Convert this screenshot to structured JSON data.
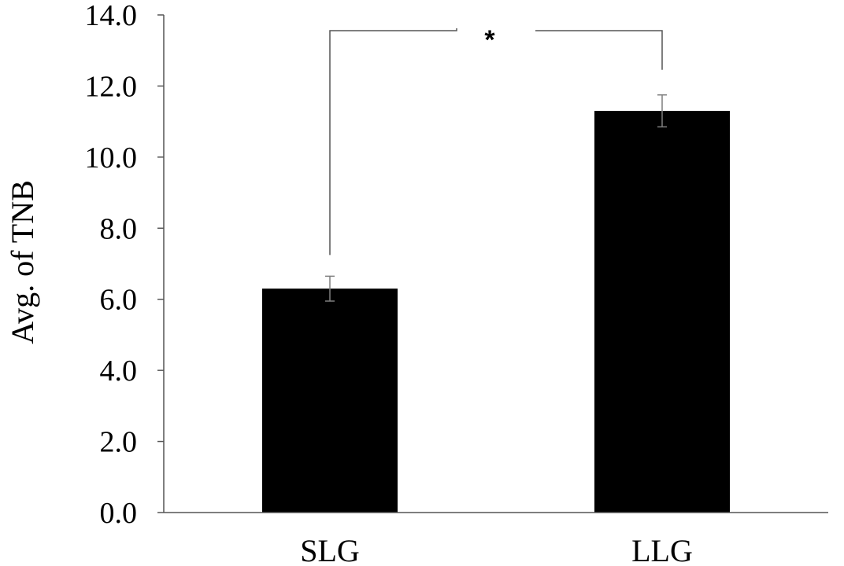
{
  "chart_data": {
    "type": "bar",
    "categories": [
      "SLG",
      "LLG"
    ],
    "values": [
      6.3,
      11.3
    ],
    "error": [
      0.35,
      0.45
    ],
    "title": "",
    "xlabel": "",
    "ylabel": "Avg. of TNB",
    "ylim": [
      0,
      14
    ],
    "yticks": [
      "0.0",
      "2.0",
      "4.0",
      "6.0",
      "8.0",
      "10.0",
      "12.0",
      "14.0"
    ],
    "grid": false,
    "legend": "none",
    "bar_color": "#000000",
    "significance": {
      "between": [
        "SLG",
        "LLG"
      ],
      "label": "*"
    }
  }
}
